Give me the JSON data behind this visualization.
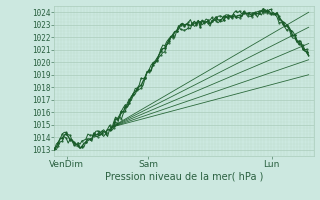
{
  "title": "Pression niveau de la mer( hPa )",
  "bg_color": "#cce8e0",
  "grid_major_color": "#aaccbb",
  "grid_minor_color": "#bbddcc",
  "line_color": "#1a5c2a",
  "yticks": [
    1013,
    1014,
    1015,
    1016,
    1017,
    1018,
    1019,
    1020,
    1021,
    1022,
    1023,
    1024
  ],
  "ylim": [
    1012.5,
    1024.5
  ],
  "xtick_labels": [
    "VenDim",
    "Sam",
    "Lun"
  ],
  "xtick_positions": [
    0.05,
    0.38,
    0.88
  ],
  "xlim": [
    0.0,
    1.05
  ],
  "font_color": "#2a6040",
  "ylabel_fontsize": 5.5,
  "xlabel_fontsize": 7.0,
  "xtick_fontsize": 6.5,
  "forecast_lines": [
    [
      0.23,
      1014.8,
      1.03,
      1024.0
    ],
    [
      0.23,
      1014.8,
      1.03,
      1022.8
    ],
    [
      0.23,
      1014.8,
      1.03,
      1021.5
    ],
    [
      0.23,
      1014.8,
      1.03,
      1020.2
    ],
    [
      0.23,
      1014.8,
      1.03,
      1019.0
    ]
  ]
}
